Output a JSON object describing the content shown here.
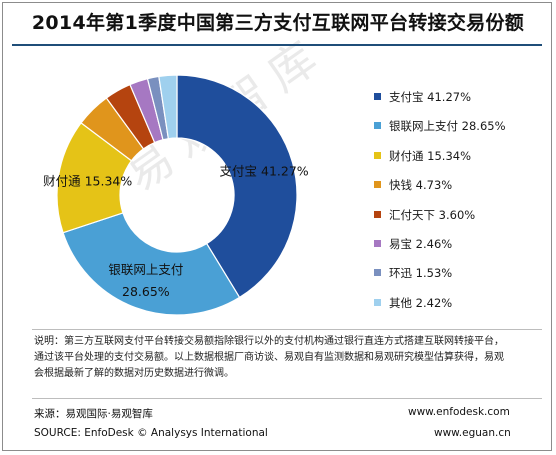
{
  "title": "2014年第1季度中国第三方支付互联网平台转接交易份额",
  "watermark": "易观智库",
  "chart_data": {
    "type": "pie",
    "title": "2014年第1季度中国第三方支付互联网平台转接交易份额",
    "donut": true,
    "start": "12 o'clock, clockwise",
    "series": [
      {
        "name": "支付宝",
        "value": 41.27,
        "legend_value": "41.27%",
        "color": "#1f4e9c"
      },
      {
        "name": "银联网上支付",
        "value": 28.65,
        "legend_value": "28.65%",
        "color": "#4aa0d5"
      },
      {
        "name": "财付通",
        "value": 15.34,
        "legend_value": "15.34%",
        "color": "#e5c317"
      },
      {
        "name": "快钱",
        "value": 4.73,
        "legend_value": "4.73%",
        "color": "#e0951c"
      },
      {
        "name": "汇付天下",
        "value": 3.6,
        "legend_value": "3.60%",
        "color": "#b5440f"
      },
      {
        "name": "易宝",
        "value": 2.46,
        "legend_value": "2.46%",
        "color": "#a678c2"
      },
      {
        "name": "环迅",
        "value": 1.53,
        "legend_value": "1.53%",
        "color": "#7a90bf"
      },
      {
        "name": "其他",
        "value": 2.42,
        "legend_value": "2.42%",
        "color": "#9fd0ee"
      }
    ],
    "slice_labels": [
      {
        "series": "支付宝",
        "lines": [
          "支付宝 41.27%"
        ]
      },
      {
        "series": "银联网上支付",
        "lines": [
          "银联网上支付",
          "28.65%"
        ]
      },
      {
        "series": "财付通",
        "lines": [
          "财付通 15.34%"
        ]
      }
    ]
  },
  "note": "说明：第三方互联网支付平台转接交易额指除银行以外的支付机构通过银行直连方式搭建互联网转接平台，通过该平台处理的支付交易额。以上数据根据厂商访谈、易观自有监测数据和易观研究模型估算获得，易观会根据最新了解的数据对历史数据进行微调。",
  "source": {
    "cn": "来源：易观国际·易观智库",
    "en": "SOURCE: EnfoDesk © Analysys International",
    "url1": "www.enfodesk.com",
    "url2": "www.eguan.cn"
  }
}
